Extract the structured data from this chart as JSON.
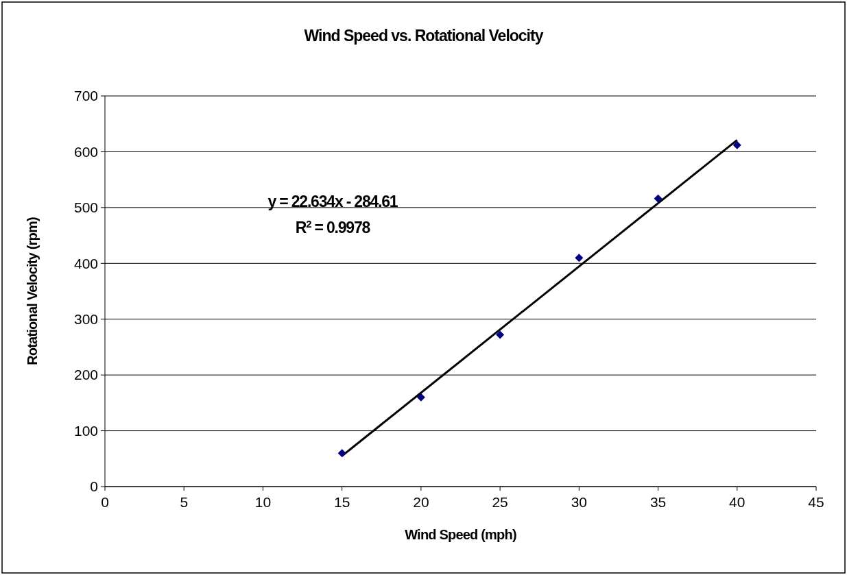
{
  "chart_data": {
    "type": "scatter",
    "title": "Wind Speed vs. Rotational Velocity",
    "xlabel": "Wind Speed (mph)",
    "ylabel": "Rotational Velocity (rpm)",
    "xlim": [
      0,
      45
    ],
    "xticks": [
      0,
      5,
      10,
      15,
      20,
      25,
      30,
      35,
      40,
      45
    ],
    "ylim": [
      0,
      700
    ],
    "yticks": [
      0,
      100,
      200,
      300,
      400,
      500,
      600,
      700
    ],
    "grid": "y",
    "series": [
      {
        "color": "#000080",
        "x": [
          15,
          20,
          25,
          30,
          35,
          40
        ],
        "values": [
          60,
          160,
          272,
          410,
          516,
          612
        ],
        "marker": "diamond"
      },
      {
        "type": "line",
        "color": "#000000",
        "x": [
          15,
          40
        ],
        "values": [
          55,
          621
        ]
      }
    ],
    "annotations": [
      "y = 22.634x - 284.61",
      "R$^{2}$ = 0.9978"
    ]
  }
}
